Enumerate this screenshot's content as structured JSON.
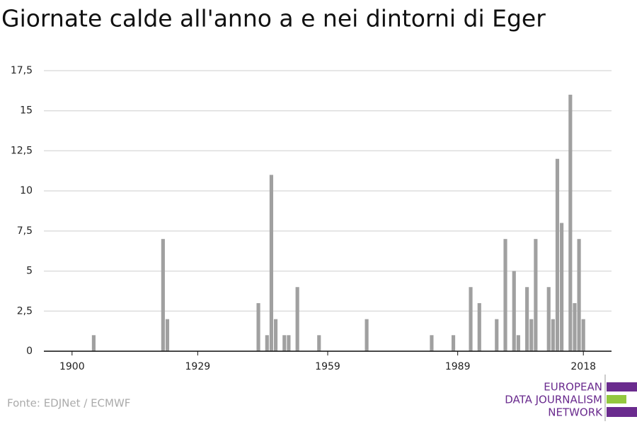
{
  "chart_data": {
    "type": "bar",
    "title": "Giornate calde all'anno a e nei dintorni di Eger",
    "x": [
      1905,
      1921,
      1922,
      1943,
      1945,
      1946,
      1947,
      1949,
      1950,
      1952,
      1957,
      1968,
      1983,
      1988,
      1992,
      1994,
      1998,
      2000,
      2002,
      2003,
      2005,
      2006,
      2007,
      2010,
      2011,
      2012,
      2013,
      2015,
      2016,
      2017,
      2018
    ],
    "values": [
      1,
      7,
      2,
      3,
      1,
      11,
      2,
      1,
      1,
      4,
      1,
      2,
      1,
      1,
      4,
      3,
      2,
      7,
      5,
      1,
      4,
      2,
      7,
      4,
      2,
      12,
      8,
      16,
      3,
      7,
      2
    ],
    "color": "#a0a0a0",
    "xlim": [
      1893.5,
      2024.5
    ],
    "xticks": [
      1900,
      1929,
      1959,
      1989,
      2018
    ],
    "ylim": [
      0,
      17.5
    ],
    "yticks": [
      0,
      {
        "value": 2.5,
        "label": "2,5"
      },
      5,
      {
        "value": 7.5,
        "label": "7,5"
      },
      10,
      {
        "value": 12.5,
        "label": "12,5"
      },
      15,
      {
        "value": 17.5,
        "label": "17,5"
      }
    ],
    "grid": true,
    "source": "Fonte: EDJNet / ECMWF"
  },
  "logo": {
    "lines": [
      "EUROPEAN",
      "DATA JOURNALISM",
      "NETWORK"
    ]
  }
}
